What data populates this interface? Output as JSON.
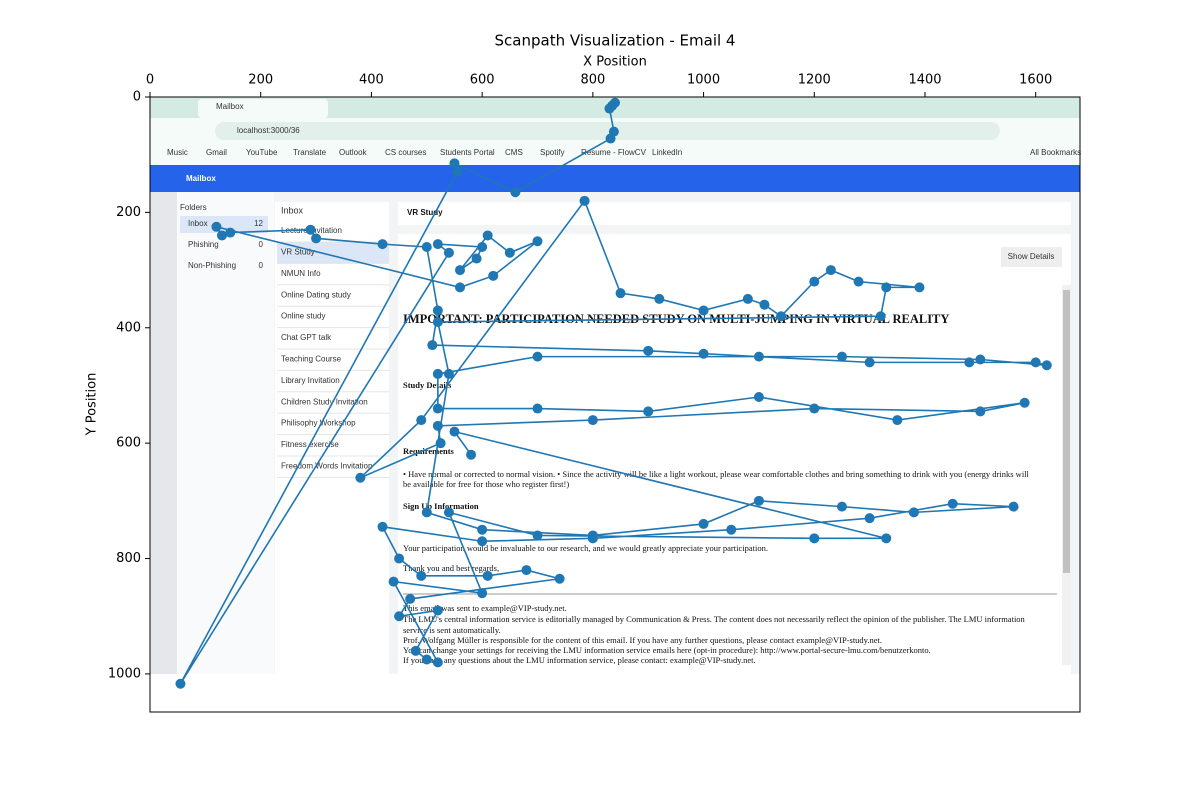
{
  "chart_data": {
    "type": "line",
    "title": "Scanpath Visualization - Email 4",
    "xlabel": "X Position",
    "ylabel": "Y Position",
    "x_axis_position": "top",
    "color": "#1f77b4",
    "markers": true,
    "xlim": [
      0,
      1680
    ],
    "ylim": [
      1066,
      0
    ],
    "xticks": [
      0,
      200,
      400,
      600,
      800,
      1000,
      1200,
      1400,
      1600
    ],
    "yticks": [
      0,
      200,
      400,
      600,
      800,
      1000
    ],
    "x": [
      835,
      840,
      830,
      838,
      832,
      660,
      550,
      555,
      55,
      540,
      520,
      600,
      590,
      560,
      610,
      650,
      700,
      620,
      560,
      120,
      130,
      145,
      290,
      300,
      420,
      500,
      520,
      510,
      900,
      1000,
      1100,
      1300,
      1480,
      1600,
      1620,
      1500,
      1250,
      700,
      520,
      520,
      700,
      900,
      1100,
      1350,
      1580,
      1500,
      1200,
      800,
      520,
      525,
      380,
      490,
      785,
      850,
      920,
      1000,
      1080,
      1110,
      1140,
      1200,
      1230,
      1280,
      1390,
      1330,
      1320,
      520,
      540,
      500,
      600,
      800,
      1000,
      1100,
      1250,
      1380,
      1560,
      1450,
      1300,
      1050,
      800,
      600,
      420,
      450,
      490,
      610,
      680,
      740,
      470,
      450,
      520,
      480,
      500,
      520,
      440,
      600,
      540,
      700,
      1200,
      1330,
      550,
      580
    ],
    "values": [
      15,
      10,
      20,
      60,
      72,
      165,
      115,
      130,
      1017,
      270,
      255,
      260,
      280,
      300,
      240,
      270,
      250,
      310,
      330,
      225,
      240,
      235,
      230,
      245,
      255,
      260,
      370,
      430,
      440,
      445,
      450,
      460,
      460,
      460,
      465,
      455,
      450,
      450,
      480,
      540,
      540,
      545,
      520,
      560,
      530,
      545,
      540,
      560,
      570,
      600,
      660,
      560,
      180,
      340,
      350,
      370,
      350,
      360,
      380,
      320,
      300,
      320,
      330,
      330,
      380,
      390,
      480,
      720,
      750,
      760,
      740,
      700,
      710,
      720,
      710,
      705,
      730,
      750,
      765,
      770,
      745,
      800,
      830,
      830,
      820,
      835,
      870,
      900,
      890,
      960,
      975,
      980,
      840,
      860,
      720,
      760,
      765,
      765,
      580,
      620
    ]
  },
  "screenshot": {
    "tab_title": "Mailbox",
    "url": "localhost:3000/36",
    "bookmarks": [
      "Music",
      "Gmail",
      "YouTube",
      "Translate",
      "Outlook",
      "CS courses",
      "Students Portal",
      "CMS",
      "Spotify",
      "Resume - FlowCV",
      "LinkedIn"
    ],
    "all_bookmarks": "All Bookmarks",
    "app_title": "Mailbox",
    "folders_heading": "Folders",
    "folders": [
      [
        "Inbox",
        "12"
      ],
      [
        "Phishing",
        "0"
      ],
      [
        "Non-Phishing",
        "0"
      ]
    ],
    "inbox_heading": "Inbox",
    "inbox": [
      "Lecture Invitation",
      "VR Study",
      "NMUN Info",
      "Online Dating study",
      "Online study",
      "Chat GPT talk",
      "Teaching Course",
      "Library Invitation",
      "Children Study Invitation",
      "Philisophy Workshop",
      "Fitness exercise",
      "Freedom Words Invitation"
    ],
    "subject": "VR Study",
    "show_details": "Show Details",
    "heading": "IMPORTANT: PARTICIPATION NEEDED STUDY ON MULTI-JUMPING IN VIRTUAL REALITY",
    "sections": [
      "Study Details",
      "Requirements",
      "Sign Up Information"
    ],
    "body": [
      "• Have normal or corrected to normal vision. • Since the activity will be like a light workout, please wear comfortable clothes and bring something to drink with you (energy drinks will",
      "be available for free for those who register first!)",
      "Your participation would be invaluable to our research, and we would greatly appreciate your participation.",
      "Thank you and best regards,"
    ],
    "footer": [
      "This email was sent to example@VIP-study.net.",
      "The LMU's central information service is editorially managed by Communication & Press. The content does not necessarily reflect the opinion of the publisher. The LMU information",
      "service is sent automatically.",
      "Prof. Wolfgang Müller is responsible for the content of this email. If you have any further questions, please contact example@VIP-study.net.",
      "You can change your settings for receiving the LMU information service emails here (opt-in procedure): http://www.portal-secure-lmu.com/benutzerkonto.",
      "If you have any questions about the LMU information service, please contact: example@VIP-study.net."
    ]
  }
}
